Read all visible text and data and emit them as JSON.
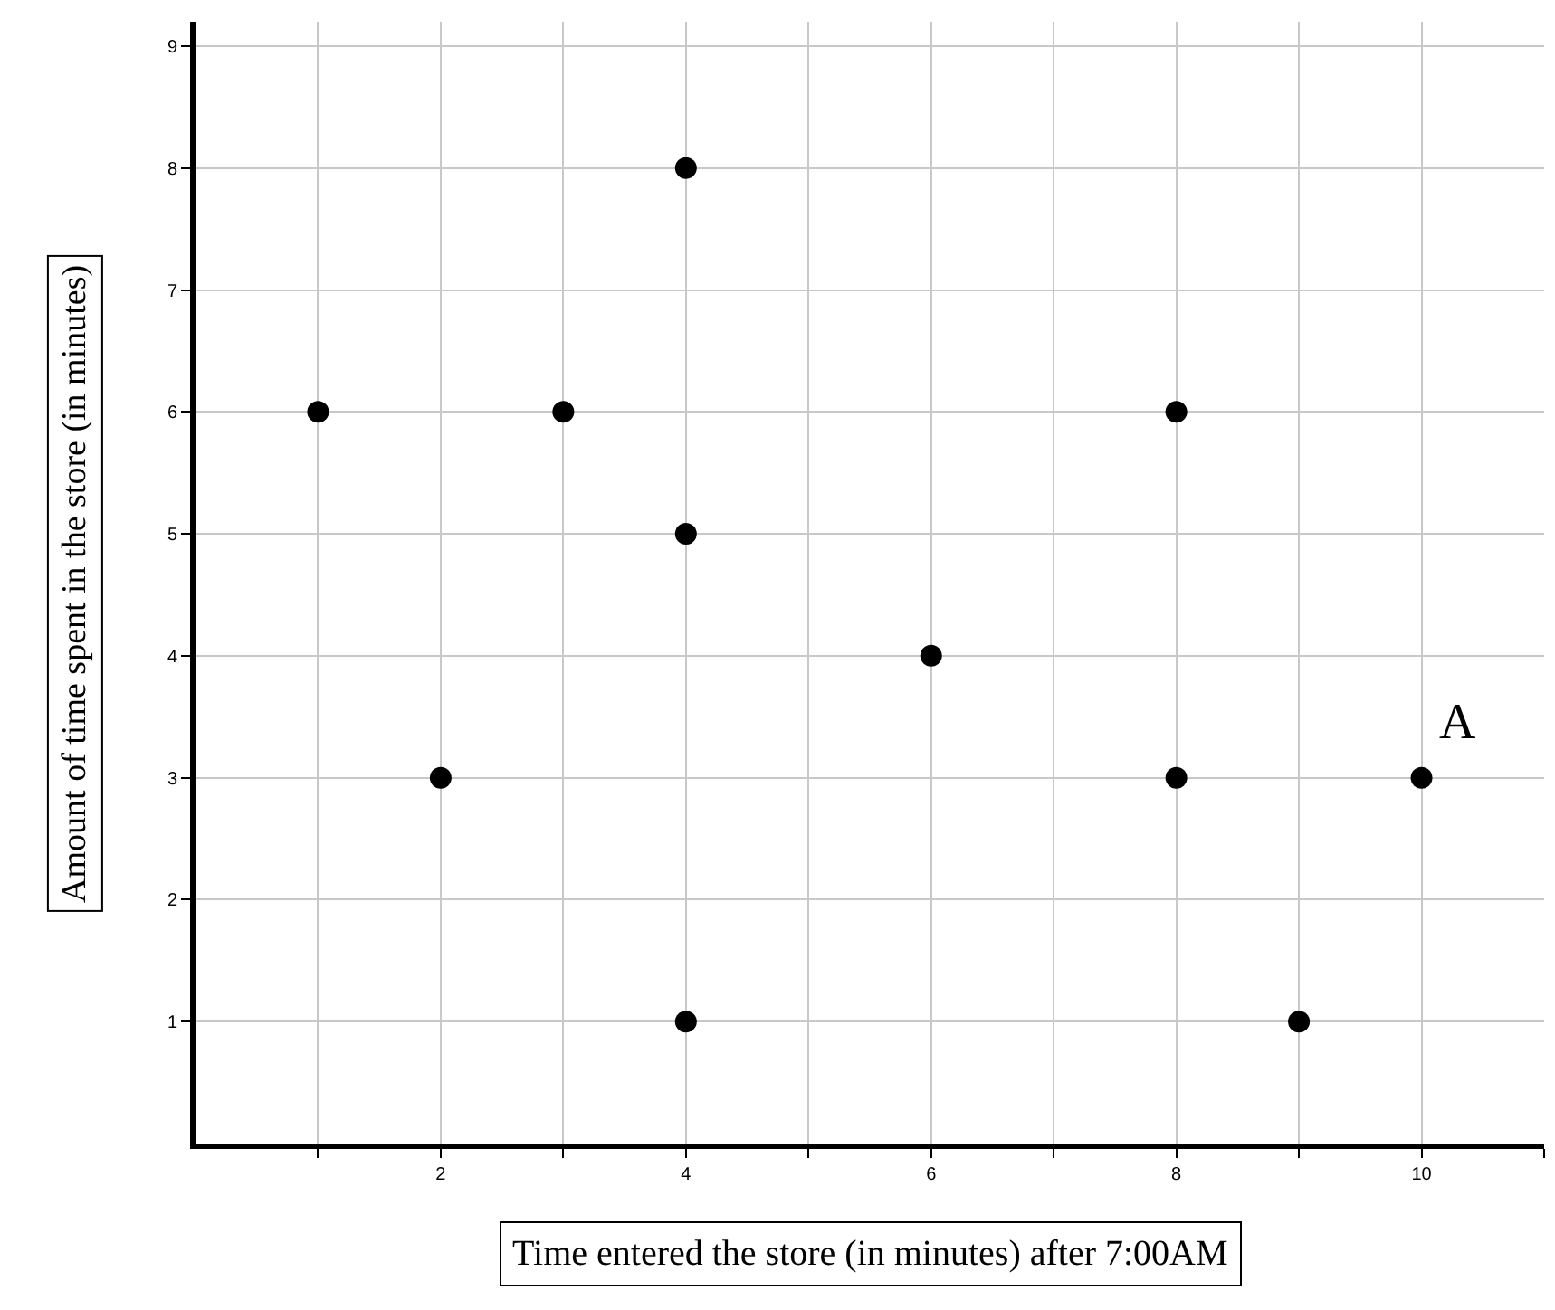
{
  "chart_data": {
    "type": "scatter",
    "xlabel": "Time entered the store (in minutes) after 7:00AM",
    "ylabel": "Amount of time spent in the store (in minutes)",
    "x": [
      1,
      2,
      3,
      4,
      4,
      4,
      6,
      8,
      8,
      9,
      10
    ],
    "series": [
      {
        "color": "#000000",
        "values": [
          6,
          3,
          6,
          8,
          5,
          1,
          4,
          6,
          3,
          1,
          3
        ]
      }
    ],
    "annotations": [
      {
        "text": "A",
        "x": 10,
        "y": 3
      }
    ],
    "xlim": [
      0,
      11
    ],
    "ylim": [
      0,
      9.2
    ],
    "xticks": [
      {
        "value": 1,
        "label": null
      },
      2,
      {
        "value": 3,
        "label": null
      },
      4,
      {
        "value": 5,
        "label": null
      },
      6,
      {
        "value": 7,
        "label": null
      },
      8,
      {
        "value": 9,
        "label": null
      },
      10,
      {
        "value": 11,
        "label": null
      }
    ],
    "yticks": [
      1,
      2,
      3,
      4,
      5,
      6,
      7,
      8,
      9
    ],
    "grid": true,
    "marker": "circle"
  }
}
